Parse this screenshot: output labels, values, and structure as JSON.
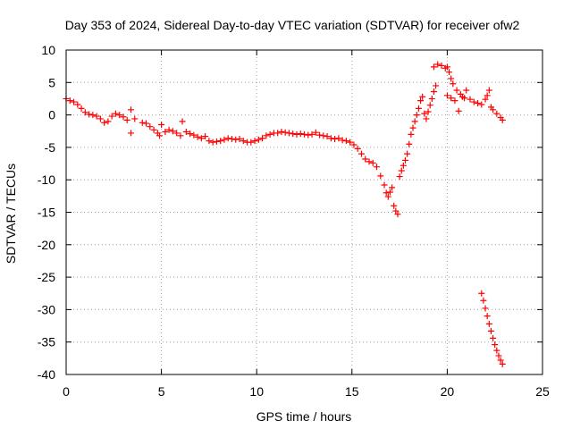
{
  "chart_data": {
    "type": "scatter",
    "title": "Day 353 of 2024, Sidereal Day-to-day VTEC variation (SDTVAR) for receiver ofw2",
    "xlabel": "GPS time / hours",
    "ylabel": "SDTVAR / TECUs",
    "xlim": [
      0,
      25
    ],
    "ylim": [
      -40,
      10
    ],
    "x_ticks": [
      0,
      5,
      10,
      15,
      20,
      25
    ],
    "y_ticks": [
      10,
      5,
      0,
      -5,
      -10,
      -15,
      -20,
      -25,
      -30,
      -35,
      -40
    ],
    "grid": true,
    "marker": "plus",
    "series": [
      {
        "name": "main",
        "color": "#ff0000",
        "points": [
          [
            0.0,
            2.5
          ],
          [
            0.2,
            2.2
          ],
          [
            0.4,
            2.0
          ],
          [
            0.6,
            1.6
          ],
          [
            0.8,
            1.0
          ],
          [
            1.0,
            0.4
          ],
          [
            1.2,
            0.1
          ],
          [
            1.4,
            0.0
          ],
          [
            1.6,
            -0.2
          ],
          [
            1.8,
            -0.6
          ],
          [
            2.0,
            -1.2
          ],
          [
            2.2,
            -1.0
          ],
          [
            2.4,
            -0.2
          ],
          [
            2.6,
            0.2
          ],
          [
            2.8,
            0.0
          ],
          [
            3.0,
            -0.3
          ],
          [
            3.2,
            -0.8
          ],
          [
            3.4,
            0.8
          ],
          [
            3.4,
            -2.8
          ],
          [
            3.6,
            -0.6
          ],
          [
            4.0,
            -1.2
          ],
          [
            4.2,
            -1.3
          ],
          [
            4.4,
            -1.8
          ],
          [
            4.6,
            -2.3
          ],
          [
            4.8,
            -2.8
          ],
          [
            4.9,
            -3.2
          ],
          [
            5.0,
            -1.5
          ],
          [
            5.2,
            -2.6
          ],
          [
            5.4,
            -2.3
          ],
          [
            5.6,
            -2.5
          ],
          [
            5.8,
            -2.8
          ],
          [
            6.0,
            -3.2
          ],
          [
            6.1,
            -1.0
          ],
          [
            6.3,
            -2.6
          ],
          [
            6.5,
            -2.9
          ],
          [
            6.7,
            -3.1
          ],
          [
            6.9,
            -3.4
          ],
          [
            7.1,
            -3.6
          ],
          [
            7.3,
            -3.3
          ],
          [
            7.5,
            -4.0
          ],
          [
            7.7,
            -4.2
          ],
          [
            7.9,
            -4.1
          ],
          [
            8.1,
            -4.0
          ],
          [
            8.3,
            -3.8
          ],
          [
            8.5,
            -3.6
          ],
          [
            8.7,
            -3.7
          ],
          [
            8.9,
            -3.8
          ],
          [
            9.1,
            -3.7
          ],
          [
            9.3,
            -4.0
          ],
          [
            9.5,
            -4.2
          ],
          [
            9.7,
            -4.2
          ],
          [
            9.9,
            -4.0
          ],
          [
            10.1,
            -3.8
          ],
          [
            10.3,
            -3.6
          ],
          [
            10.5,
            -3.2
          ],
          [
            10.7,
            -3.0
          ],
          [
            10.9,
            -2.8
          ],
          [
            11.1,
            -2.8
          ],
          [
            11.3,
            -2.6
          ],
          [
            11.5,
            -2.7
          ],
          [
            11.7,
            -2.8
          ],
          [
            11.9,
            -2.9
          ],
          [
            12.1,
            -3.0
          ],
          [
            12.3,
            -2.9
          ],
          [
            12.5,
            -3.0
          ],
          [
            12.7,
            -3.1
          ],
          [
            12.9,
            -3.0
          ],
          [
            13.1,
            -2.7
          ],
          [
            13.3,
            -3.1
          ],
          [
            13.5,
            -3.2
          ],
          [
            13.7,
            -3.3
          ],
          [
            13.9,
            -3.6
          ],
          [
            14.1,
            -3.7
          ],
          [
            14.3,
            -3.6
          ],
          [
            14.5,
            -3.9
          ],
          [
            14.7,
            -4.0
          ],
          [
            14.9,
            -4.2
          ],
          [
            15.1,
            -4.6
          ],
          [
            15.3,
            -5.2
          ],
          [
            15.5,
            -6.0
          ],
          [
            15.7,
            -6.8
          ],
          [
            15.9,
            -7.2
          ],
          [
            16.1,
            -7.4
          ],
          [
            16.3,
            -8.0
          ],
          [
            16.5,
            -9.4
          ],
          [
            16.7,
            -10.8
          ],
          [
            16.8,
            -12.0
          ],
          [
            16.9,
            -12.6
          ],
          [
            17.0,
            -11.9
          ],
          [
            17.1,
            -11.2
          ],
          [
            17.2,
            -14.0
          ],
          [
            17.3,
            -14.8
          ],
          [
            17.4,
            -15.3
          ],
          [
            17.5,
            -9.5
          ],
          [
            17.6,
            -8.6
          ],
          [
            17.7,
            -7.8
          ],
          [
            17.8,
            -7.0
          ],
          [
            17.9,
            -6.0
          ],
          [
            18.0,
            -4.5
          ],
          [
            18.1,
            -3.0
          ],
          [
            18.2,
            -2.0
          ],
          [
            18.3,
            -1.0
          ],
          [
            18.4,
            0.0
          ],
          [
            18.5,
            1.0
          ],
          [
            18.6,
            2.2
          ],
          [
            18.7,
            2.8
          ],
          [
            18.8,
            0.2
          ],
          [
            18.9,
            -0.6
          ],
          [
            19.0,
            0.5
          ],
          [
            19.1,
            1.5
          ],
          [
            19.2,
            2.5
          ],
          [
            19.3,
            3.6
          ],
          [
            19.4,
            4.5
          ],
          [
            19.3,
            7.4
          ],
          [
            19.5,
            7.8
          ],
          [
            19.7,
            7.6
          ],
          [
            19.9,
            7.2
          ],
          [
            20.0,
            7.4
          ],
          [
            20.1,
            6.6
          ],
          [
            20.2,
            5.6
          ],
          [
            20.3,
            4.8
          ],
          [
            20.5,
            3.8
          ],
          [
            20.7,
            3.2
          ],
          [
            20.9,
            2.6
          ],
          [
            20.0,
            3.0
          ],
          [
            20.2,
            2.6
          ],
          [
            20.4,
            2.2
          ],
          [
            20.6,
            0.6
          ],
          [
            20.8,
            2.8
          ],
          [
            21.0,
            3.8
          ],
          [
            21.2,
            2.4
          ],
          [
            21.4,
            2.0
          ],
          [
            21.6,
            1.8
          ],
          [
            21.8,
            1.6
          ],
          [
            22.0,
            2.4
          ],
          [
            22.1,
            3.0
          ],
          [
            22.2,
            3.8
          ],
          [
            22.3,
            1.2
          ],
          [
            22.4,
            0.8
          ],
          [
            22.6,
            0.2
          ],
          [
            22.8,
            -0.4
          ],
          [
            22.9,
            -0.8
          ]
        ]
      },
      {
        "name": "tail",
        "color": "#ff0000",
        "points": [
          [
            21.8,
            -27.5
          ],
          [
            21.9,
            -28.6
          ],
          [
            22.0,
            -29.8
          ],
          [
            22.1,
            -31.0
          ],
          [
            22.2,
            -32.2
          ],
          [
            22.3,
            -33.3
          ],
          [
            22.4,
            -34.4
          ],
          [
            22.5,
            -35.4
          ],
          [
            22.6,
            -36.3
          ],
          [
            22.7,
            -37.1
          ],
          [
            22.8,
            -37.8
          ],
          [
            22.9,
            -38.4
          ]
        ]
      }
    ]
  }
}
